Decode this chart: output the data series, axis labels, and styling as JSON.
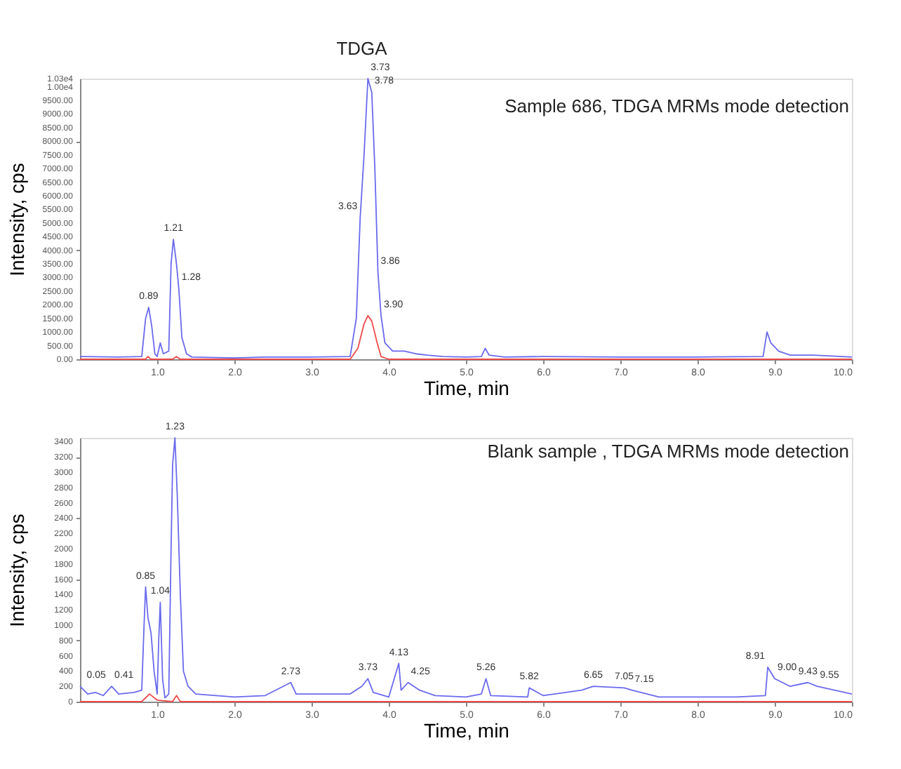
{
  "chart_data": [
    {
      "type": "line",
      "title": "Sample 686, TDGA MRMs mode detection",
      "xlabel": "Time, min",
      "ylabel": "Intensity, cps",
      "xlim": [
        0,
        10
      ],
      "ylim": [
        0,
        10300
      ],
      "grid": false,
      "xticks": [
        {
          "value": 1,
          "label": "1.0"
        },
        {
          "value": 2,
          "label": "2.0"
        },
        {
          "value": 3,
          "label": "3.0"
        },
        {
          "value": 4,
          "label": "4.0"
        },
        {
          "value": 5,
          "label": "5.0"
        },
        {
          "value": 6,
          "label": "6.0"
        },
        {
          "value": 7,
          "label": "7.0"
        },
        {
          "value": 8,
          "label": "8.0"
        },
        {
          "value": 9,
          "label": "9.0"
        },
        {
          "value": 10,
          "label": "10.0"
        }
      ],
      "yticks": [
        {
          "value": 0,
          "label": "0.00"
        },
        {
          "value": 500,
          "label": "500.00"
        },
        {
          "value": 1000,
          "label": "1000.00"
        },
        {
          "value": 1500,
          "label": "1500.00"
        },
        {
          "value": 2000,
          "label": "2000.00"
        },
        {
          "value": 2500,
          "label": "2500.00"
        },
        {
          "value": 3000,
          "label": "3000.00"
        },
        {
          "value": 3500,
          "label": "3500.00"
        },
        {
          "value": 4000,
          "label": "4000.00"
        },
        {
          "value": 4500,
          "label": "4500.00"
        },
        {
          "value": 5000,
          "label": "5000.00"
        },
        {
          "value": 5500,
          "label": "5500.00"
        },
        {
          "value": 6000,
          "label": "6000.00"
        },
        {
          "value": 6500,
          "label": "6500.00"
        },
        {
          "value": 7000,
          "label": "7000.00"
        },
        {
          "value": 7500,
          "label": "7500.00"
        },
        {
          "value": 8000,
          "label": "8000.00"
        },
        {
          "value": 8500,
          "label": "8500.00"
        },
        {
          "value": 9000,
          "label": "9000.00"
        },
        {
          "value": 9500,
          "label": "9500.00"
        },
        {
          "value": 10000,
          "label": "1.00e4"
        },
        {
          "value": 10300,
          "label": "1.03e4"
        }
      ],
      "series": [
        {
          "color": "#6a6aee",
          "x": [
            0.0,
            0.5,
            0.8,
            0.85,
            0.89,
            0.93,
            0.97,
            1.0,
            1.04,
            1.08,
            1.15,
            1.18,
            1.21,
            1.25,
            1.28,
            1.32,
            1.38,
            1.45,
            2.0,
            2.4,
            3.0,
            3.5,
            3.58,
            3.63,
            3.68,
            3.73,
            3.78,
            3.82,
            3.86,
            3.9,
            3.95,
            4.05,
            4.2,
            4.35,
            4.5,
            4.7,
            5.0,
            5.2,
            5.25,
            5.3,
            5.5,
            6.0,
            7.0,
            8.0,
            8.85,
            8.9,
            8.95,
            9.05,
            9.2,
            9.5,
            10.0
          ],
          "values": [
            100,
            80,
            100,
            1500,
            1900,
            1200,
            200,
            100,
            600,
            200,
            300,
            3500,
            4400,
            3500,
            2600,
            800,
            200,
            80,
            50,
            80,
            80,
            100,
            1500,
            5200,
            7500,
            10300,
            9800,
            7000,
            3200,
            1600,
            600,
            300,
            300,
            200,
            150,
            100,
            80,
            100,
            400,
            150,
            80,
            100,
            80,
            80,
            100,
            1000,
            600,
            300,
            150,
            150,
            80
          ]
        },
        {
          "color": "#ee4a4a",
          "x": [
            0.0,
            0.85,
            0.88,
            0.92,
            1.2,
            1.25,
            1.3,
            3.5,
            3.6,
            3.68,
            3.73,
            3.78,
            3.85,
            3.9,
            4.0,
            10.0
          ],
          "values": [
            0,
            0,
            100,
            0,
            0,
            100,
            0,
            0,
            400,
            1300,
            1600,
            1400,
            600,
            100,
            0,
            0
          ]
        }
      ],
      "annotations": [
        "TDGA",
        {
          "text": "0.89",
          "x": 0.89,
          "y": 1900
        },
        {
          "text": "1.21",
          "x": 1.21,
          "y": 4400
        },
        {
          "text": "1.28",
          "x": 1.28,
          "y": 2600
        },
        {
          "text": "3.63",
          "x": 3.63,
          "y": 5200
        },
        {
          "text": "3.73",
          "x": 3.73,
          "y": 10300
        },
        {
          "text": "3.78",
          "x": 3.78,
          "y": 9800
        },
        {
          "text": "3.86",
          "x": 3.86,
          "y": 3200
        },
        {
          "text": "3.90",
          "x": 3.9,
          "y": 1600
        }
      ]
    },
    {
      "type": "line",
      "title": "Blank sample , TDGA MRMs mode detection",
      "xlabel": "Time, min",
      "ylabel": "Intensity, cps",
      "xlim": [
        0,
        10
      ],
      "ylim": [
        0,
        3450
      ],
      "grid": false,
      "xticks": [
        {
          "value": 1,
          "label": "1.0"
        },
        {
          "value": 2,
          "label": "2.0"
        },
        {
          "value": 3,
          "label": "3.0"
        },
        {
          "value": 4,
          "label": "4.0"
        },
        {
          "value": 5,
          "label": "5.0"
        },
        {
          "value": 6,
          "label": "6.0"
        },
        {
          "value": 7,
          "label": "7.0"
        },
        {
          "value": 8,
          "label": "8.0"
        },
        {
          "value": 9,
          "label": "9.0"
        },
        {
          "value": 10,
          "label": "10.0"
        }
      ],
      "yticks": [
        0,
        200,
        400,
        600,
        800,
        1000,
        1200,
        1400,
        1600,
        1800,
        2000,
        2200,
        2400,
        2600,
        2800,
        3000,
        3200,
        3400
      ],
      "series": [
        {
          "color": "#6a6aee",
          "x": [
            0.0,
            0.05,
            0.1,
            0.2,
            0.3,
            0.41,
            0.5,
            0.7,
            0.8,
            0.83,
            0.85,
            0.88,
            0.92,
            0.96,
            1.0,
            1.02,
            1.04,
            1.07,
            1.1,
            1.15,
            1.18,
            1.2,
            1.23,
            1.26,
            1.3,
            1.34,
            1.4,
            1.5,
            2.0,
            2.4,
            2.73,
            2.8,
            3.5,
            3.65,
            3.73,
            3.8,
            4.0,
            4.13,
            4.16,
            4.25,
            4.4,
            4.6,
            5.0,
            5.2,
            5.26,
            5.32,
            5.8,
            5.82,
            6.0,
            6.5,
            6.65,
            7.05,
            7.15,
            7.5,
            8.0,
            8.5,
            8.88,
            8.91,
            9.0,
            9.2,
            9.43,
            9.55,
            10.0
          ],
          "values": [
            200,
            150,
            100,
            120,
            80,
            200,
            100,
            120,
            150,
            1000,
            1500,
            1100,
            900,
            400,
            100,
            800,
            1300,
            300,
            50,
            100,
            2000,
            3100,
            3450,
            2700,
            1400,
            400,
            200,
            100,
            60,
            80,
            250,
            100,
            100,
            200,
            300,
            120,
            60,
            500,
            150,
            250,
            150,
            80,
            60,
            100,
            300,
            80,
            60,
            180,
            80,
            150,
            200,
            180,
            150,
            60,
            60,
            60,
            80,
            450,
            300,
            200,
            250,
            200,
            100
          ]
        },
        {
          "color": "#ee4a4a",
          "x": [
            0.0,
            0.8,
            0.9,
            1.0,
            1.2,
            1.25,
            1.3,
            10.0
          ],
          "values": [
            0,
            0,
            100,
            20,
            0,
            80,
            0,
            0
          ]
        }
      ],
      "annotations": [
        {
          "text": "0.05",
          "x": 0.05,
          "y": 200
        },
        {
          "text": "0.41",
          "x": 0.41,
          "y": 200
        },
        {
          "text": "0.85",
          "x": 0.85,
          "y": 1500
        },
        {
          "text": "1.04",
          "x": 1.04,
          "y": 1300
        },
        {
          "text": "1.23",
          "x": 1.23,
          "y": 3450
        },
        {
          "text": "2.73",
          "x": 2.73,
          "y": 250
        },
        {
          "text": "3.73",
          "x": 3.73,
          "y": 300
        },
        {
          "text": "4.13",
          "x": 4.13,
          "y": 500
        },
        {
          "text": "4.25",
          "x": 4.25,
          "y": 250
        },
        {
          "text": "5.26",
          "x": 5.26,
          "y": 300
        },
        {
          "text": "5.82",
          "x": 5.82,
          "y": 180
        },
        {
          "text": "6.65",
          "x": 6.65,
          "y": 200
        },
        {
          "text": "7.05",
          "x": 7.05,
          "y": 180
        },
        {
          "text": "7.15",
          "x": 7.15,
          "y": 150
        },
        {
          "text": "8.91",
          "x": 8.91,
          "y": 450
        },
        {
          "text": "9.00",
          "x": 9.0,
          "y": 300
        },
        {
          "text": "9.43",
          "x": 9.43,
          "y": 250
        },
        {
          "text": "9.55",
          "x": 9.55,
          "y": 200
        }
      ]
    }
  ]
}
